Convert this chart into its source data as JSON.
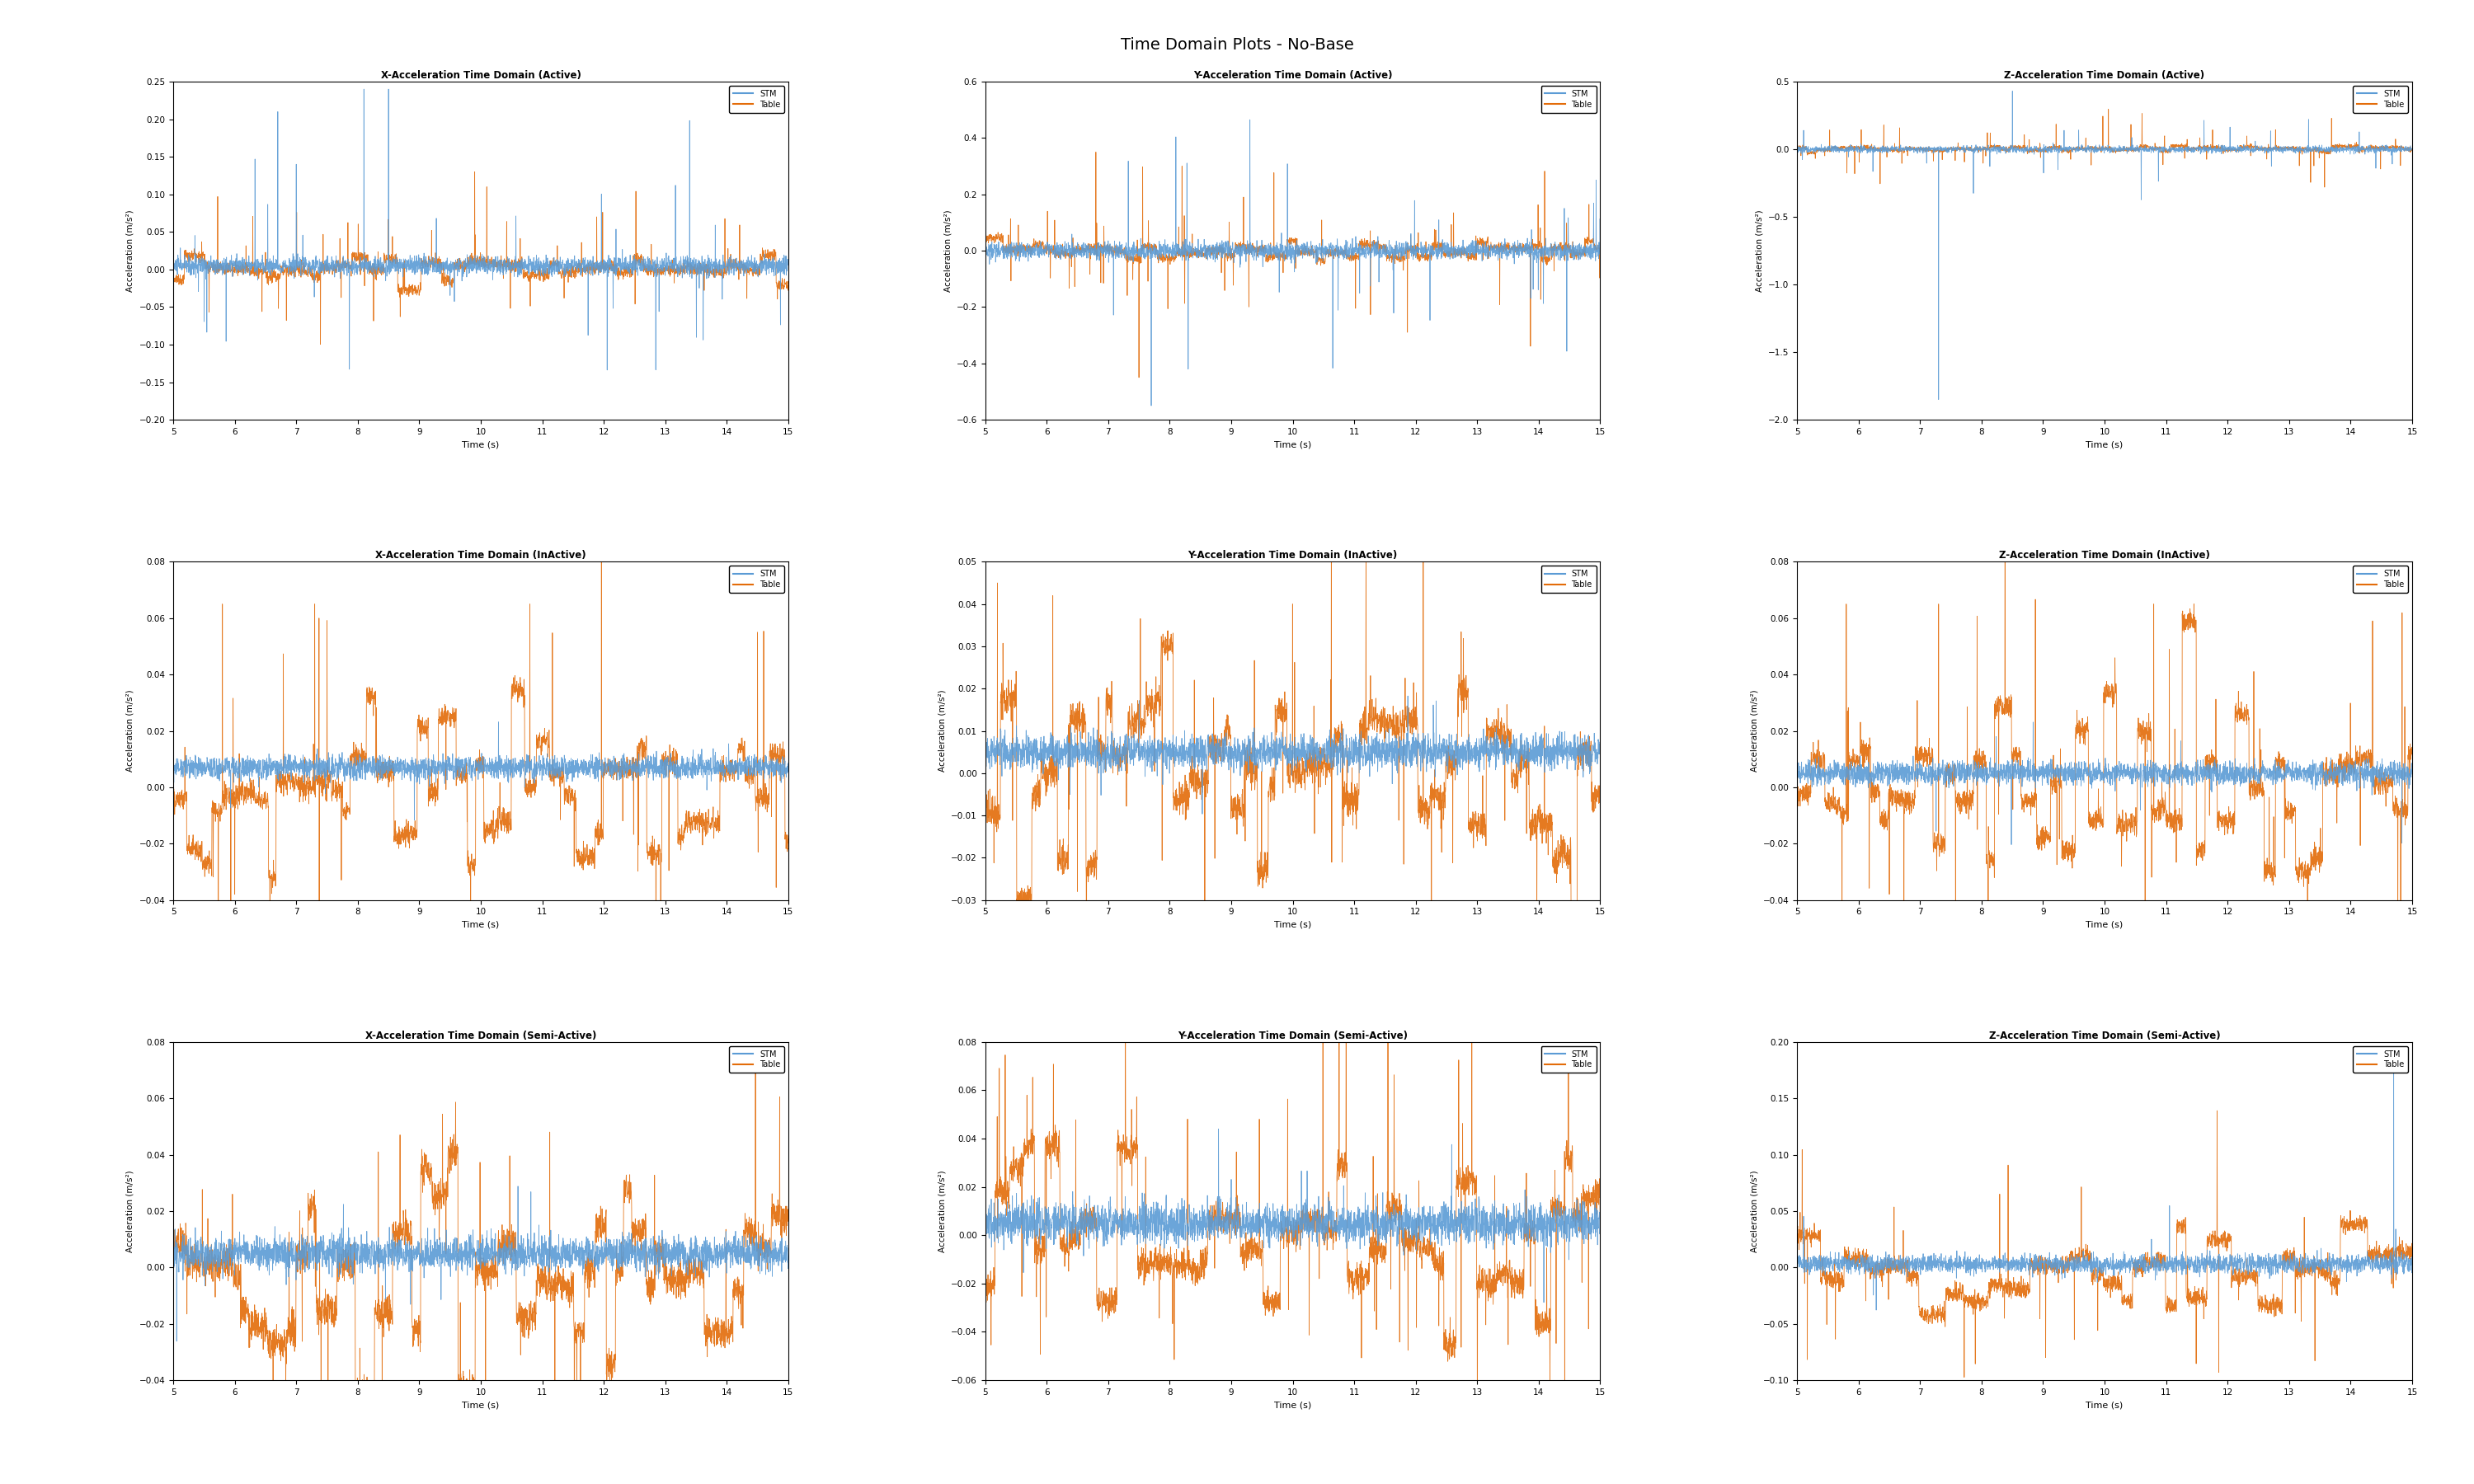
{
  "title": "Time Domain Plots - No-Base",
  "subplot_titles": [
    [
      "X-Acceleration Time Domain (Active)",
      "Y-Acceleration Time Domain (Active)",
      "Z-Acceleration Time Domain (Active)"
    ],
    [
      "X-Acceleration Time Domain (InActive)",
      "Y-Acceleration Time Domain (InActive)",
      "Z-Acceleration Time Domain (InActive)"
    ],
    [
      "X-Acceleration Time Domain (Semi-Active)",
      "Y-Acceleration Time Domain (Semi-Active)",
      "Z-Acceleration Time Domain (Semi-Active)"
    ]
  ],
  "xlabel": "Time (s)",
  "ylabel": "Acceleration (m/s²)",
  "xlim": [
    5,
    15
  ],
  "xticks": [
    5,
    6,
    7,
    8,
    9,
    10,
    11,
    12,
    13,
    14,
    15
  ],
  "legend_labels": [
    "STM",
    "Table"
  ],
  "stm_color": "#5B9BD5",
  "table_color": "#E36C09",
  "background_color": "#ffffff",
  "ylims": [
    [
      [
        -0.2,
        0.25
      ],
      [
        -0.6,
        0.6
      ],
      [
        -2.0,
        0.5
      ]
    ],
    [
      [
        -0.04,
        0.08
      ],
      [
        -0.03,
        0.05
      ],
      [
        -0.04,
        0.08
      ]
    ],
    [
      [
        -0.04,
        0.08
      ],
      [
        -0.06,
        0.08
      ],
      [
        -0.1,
        0.2
      ]
    ]
  ],
  "ytick_configs": [
    [
      [
        -0.2,
        -0.15,
        -0.1,
        -0.05,
        0,
        0.05,
        0.1,
        0.15,
        0.2,
        0.25
      ],
      [
        -0.6,
        -0.4,
        -0.2,
        0,
        0.2,
        0.4,
        0.6
      ],
      [
        -2.0,
        -1.5,
        -1.0,
        -0.5,
        0,
        0.5
      ]
    ],
    [
      [
        -0.04,
        -0.02,
        0,
        0.02,
        0.04,
        0.06,
        0.08
      ],
      [
        -0.03,
        -0.02,
        -0.01,
        0,
        0.01,
        0.02,
        0.03,
        0.04,
        0.05
      ],
      [
        -0.04,
        -0.02,
        0,
        0.02,
        0.04,
        0.06,
        0.08
      ]
    ],
    [
      [
        -0.04,
        -0.02,
        0,
        0.02,
        0.04,
        0.06,
        0.08
      ],
      [
        -0.06,
        -0.04,
        -0.02,
        0,
        0.02,
        0.04,
        0.06,
        0.08
      ],
      [
        -0.1,
        -0.05,
        0,
        0.05,
        0.1,
        0.15,
        0.2
      ]
    ]
  ]
}
